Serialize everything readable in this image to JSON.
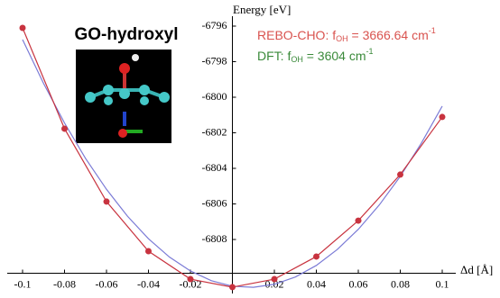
{
  "chart_data": {
    "type": "line",
    "title": "GO-hydroxyl",
    "x_label": "Δd [Å]",
    "y_label": "Energy [eV]",
    "xlim": [
      -0.105,
      0.112
    ],
    "ylim": [
      -6811,
      -6795.5
    ],
    "xticks": [
      -0.1,
      -0.08,
      -0.06,
      -0.04,
      -0.02,
      0.02,
      0.04,
      0.06,
      0.08,
      0.1
    ],
    "yticks": [
      -6796,
      -6798,
      -6800,
      -6802,
      -6804,
      -6806,
      -6808
    ],
    "x_axis_crossing": -6809.9,
    "annotations": [
      {
        "parts": [
          "REBO-CHO: f",
          "OH",
          " =  3666.64 cm",
          "-1"
        ],
        "color": "#d9534f"
      },
      {
        "parts": [
          "DFT: f",
          "OH",
          " =  3604 cm",
          "-1"
        ],
        "color": "#3a8a3a"
      }
    ],
    "series": [
      {
        "color": "#7b7bd6",
        "markers": false,
        "x": [
          -0.1,
          -0.09,
          -0.08,
          -0.07,
          -0.06,
          -0.05,
          -0.04,
          -0.03,
          -0.02,
          -0.01,
          0,
          0.01,
          0.02,
          0.03,
          0.04,
          0.05,
          0.06,
          0.07,
          0.08,
          0.09,
          0.1
        ],
        "values": [
          -6796.76,
          -6799.22,
          -6801.45,
          -6803.44,
          -6805.18,
          -6806.69,
          -6807.96,
          -6808.99,
          -6809.77,
          -6810.32,
          -6810.63,
          -6810.69,
          -6810.52,
          -6810.11,
          -6809.46,
          -6808.56,
          -6807.43,
          -6806.06,
          -6804.45,
          -6802.59,
          -6800.5
        ]
      },
      {
        "color": "#c8333f",
        "markers": true,
        "x": [
          -0.1,
          -0.08,
          -0.06,
          -0.04,
          -0.02,
          0,
          0.02,
          0.04,
          0.06,
          0.08,
          0.1
        ],
        "values": [
          -6796.1,
          -6801.77,
          -6805.87,
          -6808.66,
          -6810.23,
          -6810.68,
          -6810.23,
          -6808.96,
          -6806.94,
          -6804.35,
          -6801.11
        ]
      }
    ]
  }
}
